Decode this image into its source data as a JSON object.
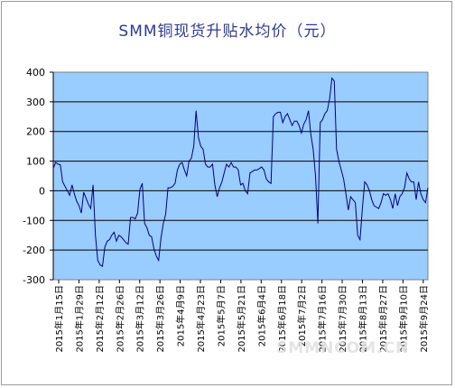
{
  "chart_data": {
    "type": "line",
    "title": "SMM铜现货升贴水均价（元）",
    "xlabel": "",
    "ylabel": "",
    "ylim": [
      -300,
      400
    ],
    "yticks": [
      -300,
      -200,
      -100,
      0,
      100,
      200,
      300,
      400
    ],
    "x_tick_labels": [
      "2015年1月15日",
      "2015年1月29日",
      "2015年2月12日",
      "2015年2月26日",
      "2015年3月12日",
      "2015年3月26日",
      "2015年4月9日",
      "2015年4月23日",
      "2015年5月7日",
      "2015年5月21日",
      "2015年6月4日",
      "2015年6月18日",
      "2015年7月2日",
      "2015年7月16日",
      "2015年7月30日",
      "2015年8月13日",
      "2015年8月27日",
      "2015年9月10日",
      "2015年9月24日"
    ],
    "grid": true,
    "legend": "none",
    "plot_background": "#99ccff",
    "line_color": "#000080",
    "values": [
      75,
      96,
      90,
      88,
      30,
      15,
      0,
      -15,
      20,
      -10,
      -35,
      -50,
      -75,
      -5,
      -25,
      -45,
      -60,
      20,
      -150,
      -235,
      -250,
      -255,
      -190,
      -170,
      -165,
      -150,
      -140,
      -170,
      -150,
      -155,
      -165,
      -175,
      -180,
      -90,
      -90,
      -95,
      -75,
      5,
      25,
      -110,
      -125,
      -150,
      -155,
      -195,
      -220,
      -235,
      -160,
      -110,
      -80,
      10,
      10,
      15,
      25,
      70,
      90,
      95,
      70,
      50,
      100,
      110,
      150,
      270,
      180,
      150,
      140,
      90,
      80,
      80,
      90,
      20,
      -20,
      10,
      30,
      60,
      90,
      80,
      95,
      80,
      80,
      70,
      20,
      25,
      0,
      -10,
      60,
      65,
      70,
      70,
      75,
      80,
      70,
      40,
      30,
      25,
      250,
      260,
      265,
      265,
      230,
      250,
      260,
      240,
      220,
      235,
      235,
      220,
      195,
      225,
      240,
      270,
      190,
      140,
      50,
      -110,
      230,
      240,
      260,
      270,
      310,
      380,
      370,
      140,
      100,
      70,
      40,
      -10,
      -65,
      -20,
      -30,
      -40,
      -150,
      -165,
      -60,
      30,
      20,
      0,
      -30,
      -50,
      -55,
      -60,
      -40,
      -10,
      -15,
      -10,
      -30,
      -60,
      -10,
      -50,
      -20,
      -10,
      10,
      60,
      40,
      30,
      30,
      -30,
      30,
      -10,
      -30,
      -40,
      10
    ]
  },
  "watermark": "SMMNCOM.CN"
}
